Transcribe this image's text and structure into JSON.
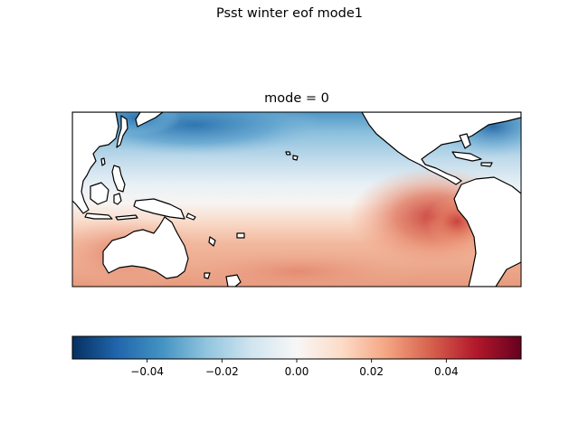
{
  "figure": {
    "suptitle": "Psst winter eof mode1",
    "axes_title": "mode = 0"
  },
  "chart_data": {
    "type": "heatmap",
    "title": "Psst winter eof mode1",
    "subtitle": "mode = 0",
    "colormap": "RdBu_r",
    "colorbar": {
      "orientation": "horizontal",
      "vmin": -0.06,
      "vmax": 0.06,
      "ticks": [
        -0.04,
        -0.02,
        0.0,
        0.02,
        0.04
      ],
      "tick_labels": [
        "−0.04",
        "−0.02",
        "0.00",
        "0.02",
        "0.04"
      ]
    },
    "region": "Pacific Ocean with coastlines; positive anomalies in tropical/south-east Pacific, negative in north-west Pacific",
    "colors": {
      "neg_strong": "#053061",
      "neg_mid": "#4393c3",
      "neutral": "#f7f7f7",
      "pos_mid": "#f4a582",
      "pos_strong": "#67001f"
    }
  }
}
